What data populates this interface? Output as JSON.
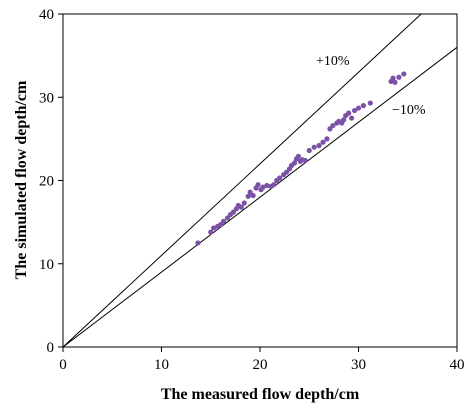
{
  "chart_data": {
    "type": "scatter",
    "title": "",
    "xlabel": "The measured flow depth/cm",
    "ylabel": "The simulated flow depth/cm",
    "xlim": [
      0,
      40
    ],
    "ylim": [
      0,
      40
    ],
    "x_ticks": [
      "0",
      "10",
      "20",
      "30",
      "40"
    ],
    "y_ticks": [
      "0",
      "10",
      "20",
      "30",
      "40"
    ],
    "grid": false,
    "marker_color": "#7b52a6",
    "line_color": "#000000",
    "reference_lines": [
      {
        "label": "+10%",
        "slope": 1.1
      },
      {
        "label": "−10%",
        "slope": 0.9
      }
    ],
    "series": [
      {
        "points": [
          [
            13.7,
            12.5
          ],
          [
            15.0,
            13.8
          ],
          [
            15.3,
            14.3
          ],
          [
            15.7,
            14.5
          ],
          [
            16.0,
            14.7
          ],
          [
            16.3,
            15.1
          ],
          [
            16.7,
            15.5
          ],
          [
            17.0,
            15.9
          ],
          [
            17.3,
            16.2
          ],
          [
            17.6,
            16.6
          ],
          [
            17.8,
            17.0
          ],
          [
            18.1,
            16.8
          ],
          [
            18.4,
            17.3
          ],
          [
            18.8,
            18.1
          ],
          [
            19.0,
            18.6
          ],
          [
            19.3,
            18.2
          ],
          [
            19.6,
            19.1
          ],
          [
            19.8,
            19.5
          ],
          [
            20.1,
            18.9
          ],
          [
            20.3,
            19.2
          ],
          [
            20.7,
            19.4
          ],
          [
            21.1,
            19.3
          ],
          [
            21.4,
            19.5
          ],
          [
            21.7,
            20.0
          ],
          [
            22.0,
            20.3
          ],
          [
            22.4,
            20.7
          ],
          [
            22.7,
            21.0
          ],
          [
            23.0,
            21.4
          ],
          [
            23.2,
            21.8
          ],
          [
            23.5,
            22.1
          ],
          [
            23.7,
            22.6
          ],
          [
            23.9,
            22.9
          ],
          [
            24.1,
            22.3
          ],
          [
            24.3,
            22.5
          ],
          [
            24.6,
            22.4
          ],
          [
            25.0,
            23.6
          ],
          [
            25.5,
            24.0
          ],
          [
            26.0,
            24.2
          ],
          [
            26.4,
            24.6
          ],
          [
            26.8,
            25.0
          ],
          [
            27.1,
            26.2
          ],
          [
            27.4,
            26.6
          ],
          [
            27.8,
            26.9
          ],
          [
            28.0,
            27.1
          ],
          [
            28.3,
            26.9
          ],
          [
            28.5,
            27.3
          ],
          [
            28.7,
            27.8
          ],
          [
            29.0,
            28.1
          ],
          [
            29.3,
            27.5
          ],
          [
            29.6,
            28.4
          ],
          [
            30.0,
            28.7
          ],
          [
            30.5,
            29.0
          ],
          [
            31.2,
            29.3
          ],
          [
            33.3,
            31.9
          ],
          [
            33.5,
            32.3
          ],
          [
            33.7,
            31.8
          ],
          [
            34.1,
            32.4
          ],
          [
            34.6,
            32.8
          ]
        ]
      }
    ]
  }
}
